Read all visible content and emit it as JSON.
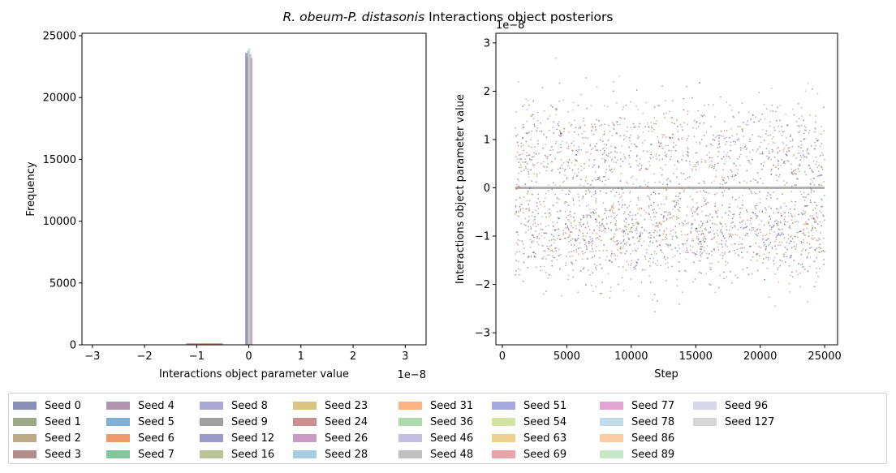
{
  "chart_data": [
    {
      "type": "histogram",
      "title_italic": "R. obeum-P. distasonis",
      "title_rest": " Interactions object posteriors",
      "xlabel": "Interactions object parameter value",
      "ylabel": "Frequency",
      "x_scale_label": "1e−8",
      "xlim": [
        -3.2,
        3.4
      ],
      "ylim": [
        0,
        25200
      ],
      "x_ticks": [
        -3,
        -2,
        -1,
        0,
        1,
        2,
        3
      ],
      "x_tick_labels": [
        "−3",
        "−2",
        "−1",
        "0",
        "1",
        "2",
        "3"
      ],
      "y_ticks": [
        0,
        5000,
        10000,
        15000,
        20000,
        25000
      ],
      "y_tick_labels": [
        "0",
        "5000",
        "10000",
        "15000",
        "20000",
        "25000"
      ],
      "spike_bars": [
        {
          "x": -0.03,
          "height": 23300,
          "color": "#b394b0"
        },
        {
          "x": -0.01,
          "height": 23800,
          "color": "#a3b18a"
        },
        {
          "x": 0.01,
          "height": 24000,
          "color": "#c6dbef"
        },
        {
          "x": 0.03,
          "height": 23500,
          "color": "#bcbcbc"
        },
        {
          "x": 0.05,
          "height": 23200,
          "color": "#c49bbb"
        },
        {
          "x": -0.05,
          "height": 23600,
          "color": "#8a8fb8"
        }
      ],
      "tail_bars": [
        {
          "x0": -1.2,
          "x1": -0.5,
          "height": 120,
          "color": "#c0676a"
        },
        {
          "x0": -0.9,
          "x1": -0.6,
          "height": 80,
          "color": "#d07b3a"
        }
      ]
    },
    {
      "type": "scatter",
      "xlabel": "Step",
      "ylabel": "Interactions object parameter value",
      "y_scale_label": "1e−8",
      "xlim": [
        -500,
        26000
      ],
      "ylim": [
        -3.25,
        3.2
      ],
      "x_ticks": [
        0,
        5000,
        10000,
        15000,
        20000,
        25000
      ],
      "x_tick_labels": [
        "0",
        "5000",
        "10000",
        "15000",
        "20000",
        "25000"
      ],
      "y_ticks": [
        -3,
        -2,
        -1,
        0,
        1,
        2,
        3
      ],
      "y_tick_labels": [
        "−3",
        "−2",
        "−1",
        "0",
        "1",
        "2",
        "3"
      ],
      "step_range": [
        1000,
        25000
      ],
      "zero_line_color": "#b0b0b0",
      "point_colors": [
        "#3b4ca8",
        "#5a8a3a",
        "#d06070",
        "#d07b3a",
        "#8a8a8a",
        "#4a4a9a",
        "#c0676a",
        "#7aa0c8",
        "#a04f4a"
      ]
    }
  ],
  "legend": [
    {
      "label": "Seed 0",
      "color": "#8a8fb8"
    },
    {
      "label": "Seed 1",
      "color": "#9fa98a"
    },
    {
      "label": "Seed 2",
      "color": "#bcab85"
    },
    {
      "label": "Seed 3",
      "color": "#b38d8b"
    },
    {
      "label": "Seed 4",
      "color": "#b394b0"
    },
    {
      "label": "Seed 5",
      "color": "#7eb0d5"
    },
    {
      "label": "Seed 6",
      "color": "#ef9a6a"
    },
    {
      "label": "Seed 7",
      "color": "#80c69a"
    },
    {
      "label": "Seed 8",
      "color": "#aba9d4"
    },
    {
      "label": "Seed 9",
      "color": "#a0a0a0"
    },
    {
      "label": "Seed 12",
      "color": "#9a9ac8"
    },
    {
      "label": "Seed 16",
      "color": "#b9c596"
    },
    {
      "label": "Seed 23",
      "color": "#dbc382"
    },
    {
      "label": "Seed 24",
      "color": "#cd8f8f"
    },
    {
      "label": "Seed 26",
      "color": "#c99bc4"
    },
    {
      "label": "Seed 28",
      "color": "#a6cee3"
    },
    {
      "label": "Seed 31",
      "color": "#fdb482"
    },
    {
      "label": "Seed 36",
      "color": "#acdaa8"
    },
    {
      "label": "Seed 46",
      "color": "#c4bfe0"
    },
    {
      "label": "Seed 48",
      "color": "#bfbfbf"
    },
    {
      "label": "Seed 51",
      "color": "#a3a9e0"
    },
    {
      "label": "Seed 54",
      "color": "#d3e3a3"
    },
    {
      "label": "Seed 63",
      "color": "#efd18f"
    },
    {
      "label": "Seed 69",
      "color": "#e8a4a8"
    },
    {
      "label": "Seed 77",
      "color": "#e2a5d6"
    },
    {
      "label": "Seed 78",
      "color": "#c2dde9"
    },
    {
      "label": "Seed 86",
      "color": "#fbcba3"
    },
    {
      "label": "Seed 89",
      "color": "#c6e8c6"
    },
    {
      "label": "Seed 96",
      "color": "#d7d6eb"
    },
    {
      "label": "Seed 127",
      "color": "#d6d6d6"
    }
  ]
}
